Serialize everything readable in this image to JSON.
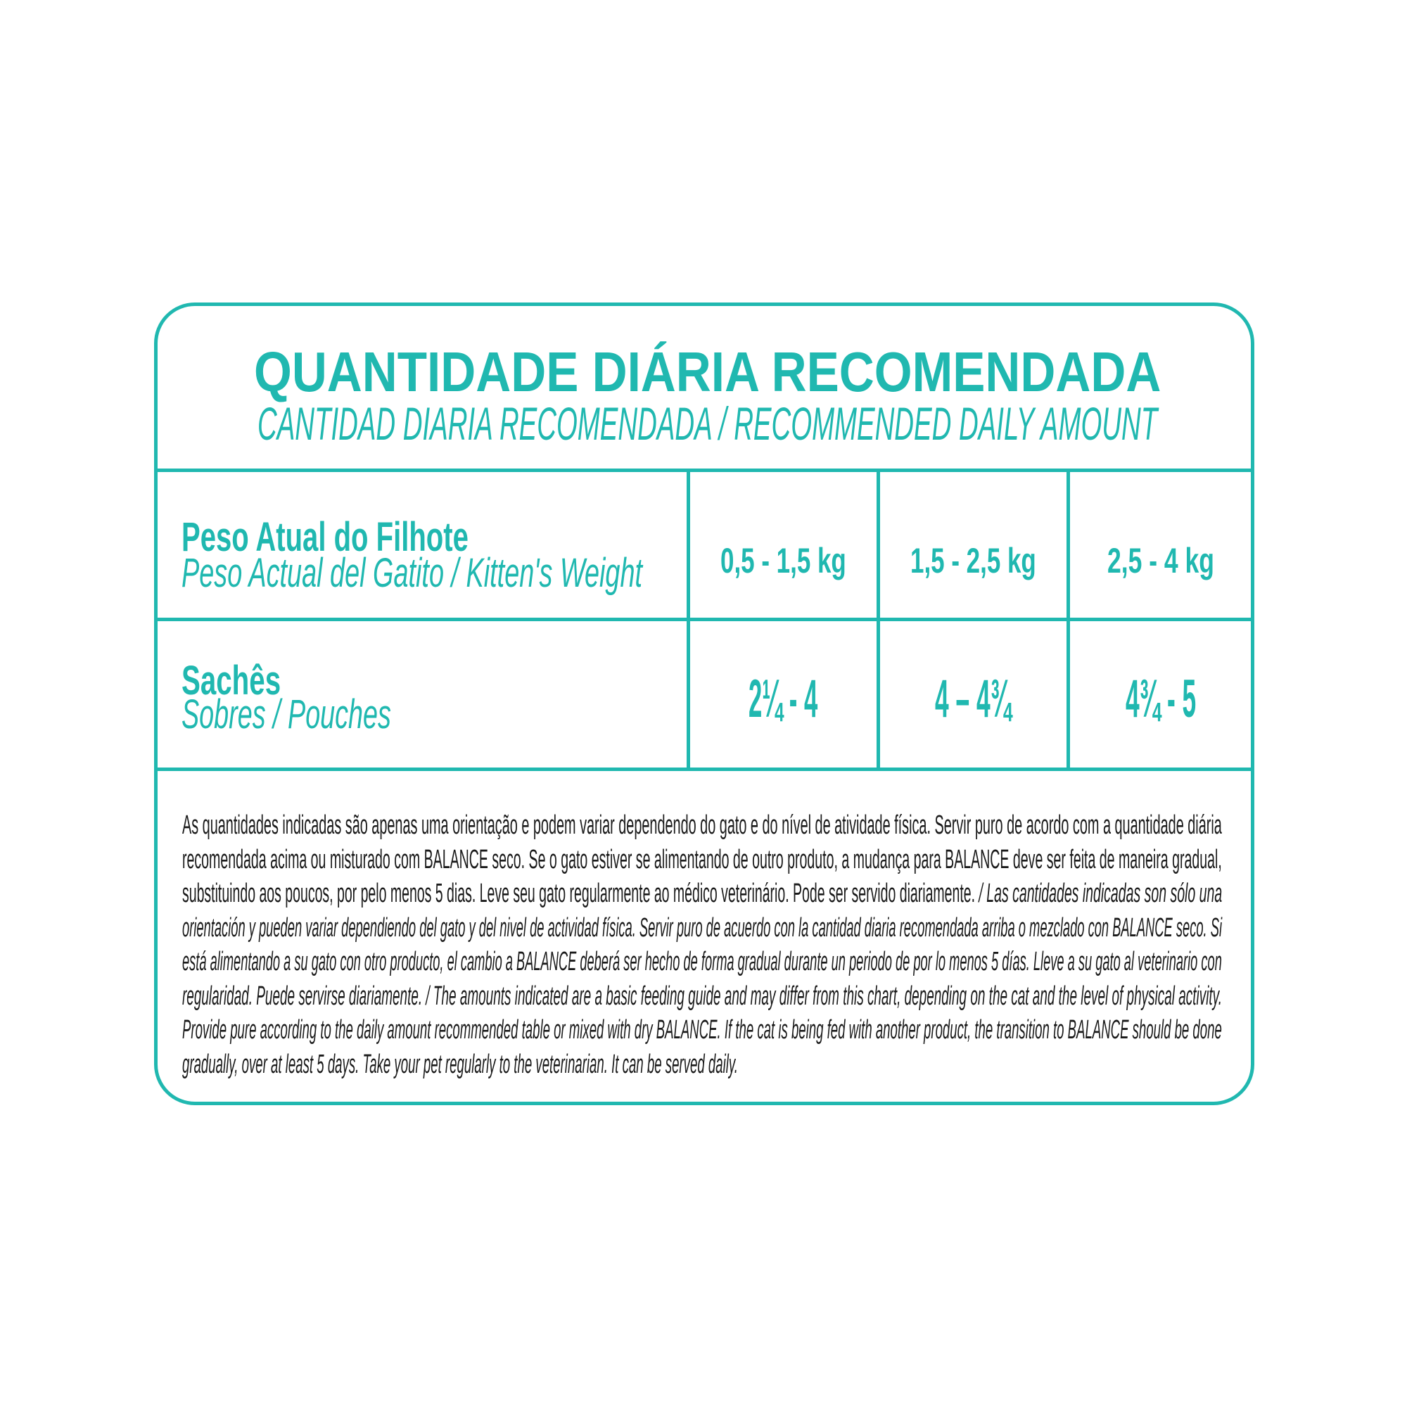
{
  "colors": {
    "accent": "#20b8b0",
    "text": "#1a1a1a"
  },
  "title": "QUANTIDADE DIÁRIA RECOMENDADA",
  "subtitle": "CANTIDAD DIARIA RECOMENDADA / RECOMMENDED DAILY AMOUNT",
  "rows": [
    {
      "label": "Peso Atual do Filhote",
      "sublabel": "Peso Actual del Gatito / Kitten's Weight",
      "values": [
        "0,5 - 1,5 kg",
        "1,5 - 2,5 kg",
        "2,5 - 4 kg"
      ]
    },
    {
      "label": "Sachês",
      "sublabel": "Sobres / Pouches",
      "values": [
        "2¼ - 4",
        "4 – 4¾",
        "4¾ - 5"
      ]
    }
  ],
  "note_lines": [
    {
      "a": "As quantidades indicadas são apenas uma orientação e podem variar dependendo do gato e do nível de atividade física. Servir puro de acordo com a quantidade diária",
      "b": ""
    },
    {
      "a": "recomendada acima ou misturado com BALANCE seco. Se o gato estiver se alimentando de outro produto, a mudança para BALANCE deve ser feita de maneira gradual,",
      "b": ""
    },
    {
      "a": "substituindo aos poucos, por pelo menos 5 dias. Leve seu gato regularmente ao médico veterinário. Pode ser servido diariamente. ",
      "b": "/ Las cantidades indicadas son sólo una"
    },
    {
      "a": "",
      "b": "orientación y pueden variar dependiendo del gato y del nivel de actividad física. Servir puro de acuerdo con la cantidad diaria recomendada arriba o mezclado con BALANCE seco. Si"
    },
    {
      "a": "",
      "b": "está alimentando a su gato con otro producto, el cambio a BALANCE deberá ser hecho de forma gradual durante un periodo de por lo menos 5 días. Lleve a su gato al veterinario con"
    },
    {
      "a": "",
      "b": "regularidad. Puede servirse diariamente. / The amounts indicated are a basic feeding guide and may differ from this chart, depending on the cat and the level of physical activity."
    },
    {
      "a": "",
      "b": "Provide pure according to the daily amount recommended table or mixed with dry BALANCE. If the cat is being fed with another product, the transition to BALANCE should be done"
    },
    {
      "a": "",
      "b": "gradually, over at least 5 days. Take your pet regularly to the veterinarian. It can be served daily."
    }
  ]
}
